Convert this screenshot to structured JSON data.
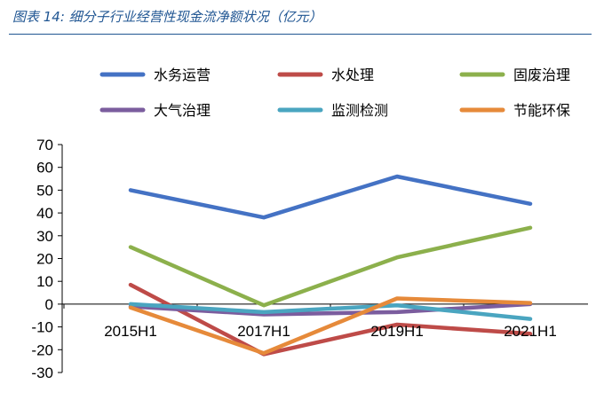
{
  "figure": {
    "title": "图表 14:  细分子行业经营性现金流净额状况（亿元）"
  },
  "chart_data": {
    "type": "line",
    "title": "",
    "xlabel": "",
    "ylabel": "",
    "categories": [
      "2015H1",
      "2017H1",
      "2019H1",
      "2021H1"
    ],
    "ylim": [
      -30,
      70
    ],
    "yticks": [
      70,
      60,
      50,
      40,
      30,
      20,
      10,
      0,
      -10,
      -20,
      -30
    ],
    "grid": false,
    "legend_position": "top",
    "series": [
      {
        "name": "水务运营",
        "color": "#4472c4",
        "values": [
          50,
          38,
          56,
          44
        ]
      },
      {
        "name": "水处理",
        "color": "#be4b48",
        "values": [
          8.5,
          -22,
          -9,
          -13
        ]
      },
      {
        "name": "固废治理",
        "color": "#8cb04c",
        "values": [
          25,
          -0.5,
          20.5,
          33.5
        ]
      },
      {
        "name": "大气治理",
        "color": "#7b5d9e",
        "values": [
          -1,
          -4.5,
          -3.5,
          0
        ]
      },
      {
        "name": "监测检测",
        "color": "#4aa5c0",
        "values": [
          0,
          -3.5,
          -0.5,
          -6.5
        ]
      },
      {
        "name": "节能环保",
        "color": "#e68a3a",
        "values": [
          -1.5,
          -21.5,
          2.5,
          0.5
        ]
      }
    ]
  }
}
